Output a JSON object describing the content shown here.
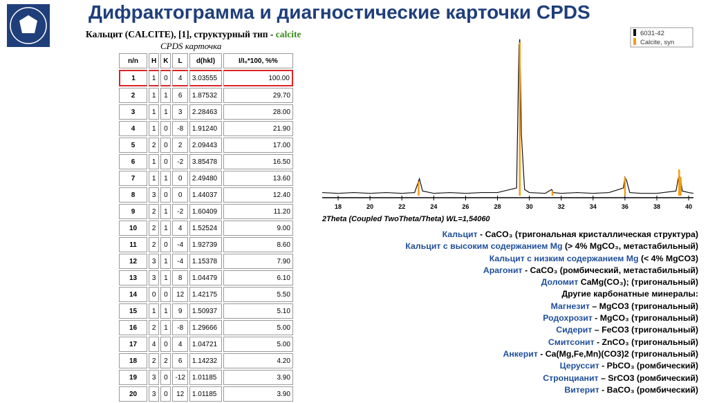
{
  "header": {
    "title": "Дифрактограмма и диагностические карточки CPDS"
  },
  "table": {
    "caption": {
      "text": "Кальцит (CALCITE), [1], структурный тип -",
      "type_name": "calcite"
    },
    "subtitle": "CPDS карточка",
    "columns": [
      "n/n",
      "H",
      "K",
      "L",
      "d(hkl)",
      "I/I₀*100, %%"
    ],
    "rows": [
      [
        "1",
        "1",
        "0",
        "4",
        "3.03555",
        "100.00"
      ],
      [
        "2",
        "1",
        "1",
        "6",
        "1.87532",
        "29.70"
      ],
      [
        "3",
        "1",
        "1",
        "3",
        "2.28463",
        "28.00"
      ],
      [
        "4",
        "1",
        "0",
        "-8",
        "1.91240",
        "21.90"
      ],
      [
        "5",
        "2",
        "0",
        "2",
        "2.09443",
        "17.00"
      ],
      [
        "6",
        "1",
        "0",
        "-2",
        "3.85478",
        "16.50"
      ],
      [
        "7",
        "1",
        "1",
        "0",
        "2.49480",
        "13.60"
      ],
      [
        "8",
        "3",
        "0",
        "0",
        "1.44037",
        "12.40"
      ],
      [
        "9",
        "2",
        "1",
        "-2",
        "1.60409",
        "11.20"
      ],
      [
        "10",
        "2",
        "1",
        "4",
        "1.52524",
        "9.00"
      ],
      [
        "11",
        "2",
        "0",
        "-4",
        "1.92739",
        "8.60"
      ],
      [
        "12",
        "3",
        "1",
        "-4",
        "1.15378",
        "7.90"
      ],
      [
        "13",
        "3",
        "1",
        "8",
        "1.04479",
        "6.10"
      ],
      [
        "14",
        "0",
        "0",
        "12",
        "1.42175",
        "5.50"
      ],
      [
        "15",
        "1",
        "1",
        "9",
        "1.50937",
        "5.10"
      ],
      [
        "16",
        "2",
        "1",
        "-8",
        "1.29666",
        "5.00"
      ],
      [
        "17",
        "4",
        "0",
        "4",
        "1.04721",
        "5.00"
      ],
      [
        "18",
        "2",
        "2",
        "6",
        "1.14232",
        "4.20"
      ],
      [
        "19",
        "3",
        "0",
        "-12",
        "1.01185",
        "3.90"
      ],
      [
        "20",
        "3",
        "0",
        "12",
        "1.01185",
        "3.90"
      ]
    ]
  },
  "chart_data": {
    "type": "line",
    "x_label": "2Theta (Coupled TwoTheta/Theta) WL=1,54060",
    "xlim": [
      17,
      40.3
    ],
    "ylim": [
      0,
      105
    ],
    "xticks": [
      18,
      20,
      22,
      24,
      26,
      28,
      30,
      32,
      34,
      36,
      38,
      40
    ],
    "legend": "top-right",
    "series": [
      {
        "name": "6031-42",
        "color": "#111111",
        "style": "line",
        "x": [
          17,
          18,
          19,
          20,
          21,
          22,
          22.8,
          23.0,
          23.1,
          23.3,
          24,
          25,
          26,
          27,
          28,
          29.2,
          29.35,
          29.4,
          29.5,
          29.7,
          30,
          31,
          31.4,
          31.5,
          32,
          33,
          34,
          35,
          35.9,
          36.0,
          36.1,
          36.3,
          37,
          38,
          39.2,
          39.4,
          39.5,
          39.6,
          40,
          40.3
        ],
        "values": [
          2,
          1.5,
          2,
          1.5,
          2,
          1.5,
          2,
          8,
          11,
          3,
          1.5,
          2,
          1.5,
          2,
          2,
          5,
          98,
          102,
          40,
          4,
          2,
          1.5,
          4,
          2,
          1.5,
          2,
          1.5,
          2,
          5,
          12,
          10,
          2,
          1.5,
          1.5,
          3,
          14,
          10,
          3,
          2,
          1.5
        ]
      },
      {
        "name": "Calcite, syn",
        "color": "#f39c12",
        "style": "stem",
        "x": [
          23.05,
          29.4,
          31.45,
          36.0,
          39.4,
          39.5
        ],
        "values": [
          9,
          100,
          3,
          12,
          17,
          12
        ]
      }
    ]
  },
  "minerals": [
    {
      "name": "Кальцит",
      "text": " - CaCO₃ (тригональная кристаллическая структура)"
    },
    {
      "name": "Кальцит с высоким содержанием Mg",
      "text": " (> 4% MgCO₃, метастабильный)"
    },
    {
      "name": "Кальцит с низким содержанием Mg",
      "text": " (< 4% MgCO3)"
    },
    {
      "name": "Арагонит",
      "text": " - CaCO₃ (ромбический, метастабильный)"
    },
    {
      "name": "Доломит",
      "text": " CaMg(CO₃); (тригональный)"
    },
    {
      "text": "Другие карбонатные минералы:"
    },
    {
      "name": "Магнезит",
      "text": " – MgCO3 (тригональный)"
    },
    {
      "name": "Родохрозит",
      "text": " - MgCO₃ (тригональный)"
    },
    {
      "name": "Сидерит",
      "text": " – FeCO3 (тригональный)"
    },
    {
      "name": "Смитсонит",
      "text": " - ZnCO₃ (тригональный)"
    },
    {
      "name": "Анкерит",
      "text": " - Ca(Mg,Fe,Mn)(CO3)2 (тригональный)"
    },
    {
      "name": "Церуссит",
      "text": " - PbCO₃ (ромбический)"
    },
    {
      "name": "Стронцианит",
      "text": " – SrCO3 (ромбический)"
    },
    {
      "name": "Витерит",
      "text": " - BaCO₃ (ромбический)"
    }
  ]
}
